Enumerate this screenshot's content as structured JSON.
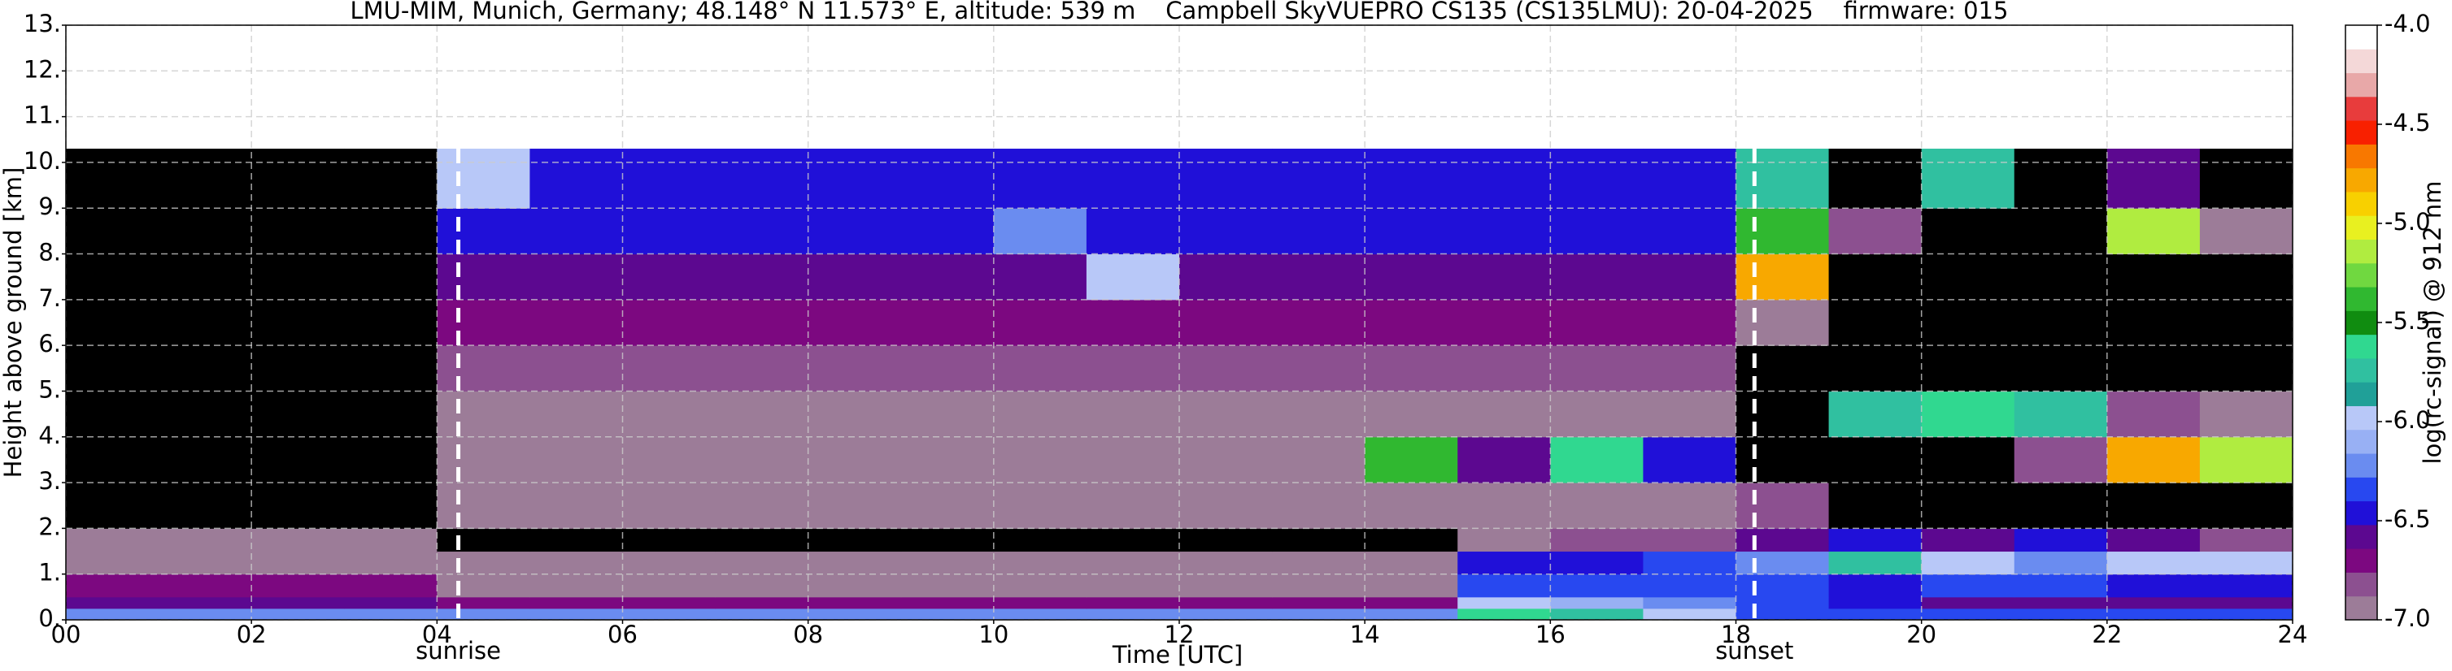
{
  "chart_data": {
    "type": "heatmap",
    "title": "LMU-MIM, Munich, Germany; 48.148° N 11.573° E, altitude: 539 m    Campbell SkyVUEPRO CS135 (CS135LMU): 20-04-2025    firmware: 015",
    "x_label": "Time [UTC]",
    "y_label": "Height above ground [km]",
    "x": [
      0,
      1,
      2,
      3,
      4,
      5,
      6,
      7,
      8,
      9,
      10,
      11,
      12,
      13,
      14,
      15,
      16,
      17,
      18,
      19,
      20,
      21,
      22,
      23,
      24
    ],
    "y": [
      0,
      0.25,
      0.5,
      1,
      1.5,
      2,
      3,
      4,
      5,
      6,
      7,
      8,
      9,
      10.3
    ],
    "z": [
      [
        -6.2,
        -6.2,
        -6.2,
        -6.2,
        -6.2,
        -6.2,
        -6.2,
        -6.2,
        -6.2,
        -6.2,
        -6.2,
        -6.2,
        -6.2,
        -6.2,
        -6.2,
        -5.6,
        -5.8,
        -6.0,
        -6.3,
        -6.3,
        -6.3,
        -6.3,
        -6.3,
        -6.3
      ],
      [
        -6.6,
        -6.6,
        -6.6,
        -6.6,
        -6.7,
        -6.7,
        -6.7,
        -6.7,
        -6.7,
        -6.7,
        -6.7,
        -6.7,
        -6.7,
        -6.7,
        -6.7,
        -6.0,
        -6.1,
        -6.2,
        -6.3,
        -6.5,
        -6.6,
        -6.6,
        -6.6,
        -6.6
      ],
      [
        -6.7,
        -6.7,
        -6.7,
        -6.7,
        -6.9,
        -6.9,
        -6.9,
        -6.9,
        -6.9,
        -6.9,
        -6.9,
        -6.9,
        -6.9,
        -6.9,
        -6.9,
        -6.3,
        -6.3,
        -6.3,
        -6.3,
        -6.4,
        -6.3,
        -6.3,
        -6.4,
        -6.5
      ],
      [
        -6.9,
        -6.9,
        -6.9,
        -6.9,
        -7.0,
        -7.0,
        -7.0,
        -7.0,
        -7.0,
        -7.0,
        -7.0,
        -7.0,
        -7.0,
        -7.0,
        -7.0,
        -6.4,
        -6.4,
        -6.3,
        -6.2,
        -5.8,
        -6.0,
        -6.2,
        -6.0,
        -6.0
      ],
      [
        -7.0,
        -7.0,
        -7.0,
        -7.0,
        -7.1,
        -7.1,
        -7.1,
        -7.1,
        -7.1,
        -7.1,
        -7.1,
        -7.1,
        -7.1,
        -7.1,
        -7.1,
        -6.9,
        -6.8,
        -6.8,
        -6.6,
        -6.5,
        -6.6,
        -6.5,
        -6.6,
        -6.8
      ],
      [
        -7.3,
        -7.3,
        -7.3,
        -7.3,
        -6.9,
        -6.9,
        -6.9,
        -6.9,
        -6.9,
        -6.9,
        -6.9,
        -6.9,
        -6.9,
        -6.9,
        -6.9,
        -6.9,
        -6.9,
        -6.9,
        -6.8,
        -7.3,
        -7.3,
        -7.3,
        -7.3,
        -7.3
      ],
      [
        -7.3,
        -7.3,
        -7.3,
        -7.3,
        -6.9,
        -6.9,
        -6.9,
        -6.9,
        -6.9,
        -6.9,
        -6.9,
        -6.9,
        -6.9,
        -6.9,
        -5.4,
        -6.6,
        -5.6,
        -6.4,
        -7.3,
        -7.3,
        -7.3,
        -6.8,
        -4.8,
        -5.2
      ],
      [
        -7.3,
        -7.3,
        -7.3,
        -7.3,
        -6.9,
        -6.9,
        -6.9,
        -6.9,
        -6.9,
        -6.9,
        -6.9,
        -6.9,
        -6.9,
        -6.9,
        -6.9,
        -6.9,
        -6.9,
        -6.9,
        -7.3,
        -5.8,
        -5.6,
        -5.8,
        -6.8,
        -7.0
      ],
      [
        -7.3,
        -7.3,
        -7.3,
        -7.3,
        -6.8,
        -6.8,
        -6.8,
        -6.8,
        -6.8,
        -6.8,
        -6.8,
        -6.8,
        -6.8,
        -6.8,
        -6.8,
        -6.8,
        -6.8,
        -6.8,
        -7.3,
        -7.3,
        -7.3,
        -7.3,
        -7.3,
        -7.3
      ],
      [
        -7.3,
        -7.3,
        -7.3,
        -7.3,
        -6.7,
        -6.7,
        -6.7,
        -6.7,
        -6.7,
        -6.7,
        -6.7,
        -6.7,
        -6.7,
        -6.7,
        -6.7,
        -6.7,
        -6.7,
        -6.7,
        -7.0,
        -7.3,
        -7.3,
        -7.3,
        -7.3,
        -7.3
      ],
      [
        -7.3,
        -7.3,
        -7.3,
        -7.3,
        -6.6,
        -6.6,
        -6.6,
        -6.6,
        -6.6,
        -6.6,
        -6.6,
        -6.0,
        -6.6,
        -6.6,
        -6.6,
        -6.6,
        -6.6,
        -6.6,
        -4.8,
        -7.3,
        -7.3,
        -7.3,
        -7.3,
        -7.3
      ],
      [
        -7.3,
        -7.3,
        -7.3,
        -7.3,
        -6.5,
        -6.5,
        -6.5,
        -6.5,
        -6.5,
        -6.5,
        -6.2,
        -6.5,
        -6.5,
        -6.5,
        -6.5,
        -6.5,
        -6.5,
        -6.5,
        -5.4,
        -6.8,
        -7.3,
        -7.3,
        -5.2,
        -7.0
      ],
      [
        -7.2,
        -7.2,
        -7.2,
        -7.2,
        -6.0,
        -6.5,
        -6.5,
        -6.5,
        -6.5,
        -6.5,
        -6.5,
        -6.5,
        -6.5,
        -6.5,
        -6.5,
        -6.5,
        -6.5,
        -6.5,
        -5.8,
        -7.2,
        -5.8,
        -7.3,
        -6.6,
        -7.3
      ]
    ],
    "xlim": [
      0,
      24
    ],
    "ylim": [
      0,
      13
    ],
    "xticks": [
      {
        "value": 0,
        "label": "00"
      },
      {
        "value": 2,
        "label": "02"
      },
      {
        "value": 4,
        "label": "04"
      },
      {
        "value": 6,
        "label": "06"
      },
      {
        "value": 8,
        "label": "08"
      },
      {
        "value": 10,
        "label": "10"
      },
      {
        "value": 12,
        "label": "12"
      },
      {
        "value": 14,
        "label": "14"
      },
      {
        "value": 16,
        "label": "16"
      },
      {
        "value": 18,
        "label": "18"
      },
      {
        "value": 20,
        "label": "20"
      },
      {
        "value": 22,
        "label": "22"
      },
      {
        "value": 24,
        "label": "24"
      }
    ],
    "yticks": [
      {
        "value": 0,
        "label": "0."
      },
      {
        "value": 1,
        "label": "1."
      },
      {
        "value": 2,
        "label": "2."
      },
      {
        "value": 3,
        "label": "3."
      },
      {
        "value": 4,
        "label": "4."
      },
      {
        "value": 5,
        "label": "5."
      },
      {
        "value": 6,
        "label": "6."
      },
      {
        "value": 7,
        "label": "7."
      },
      {
        "value": 8,
        "label": "8."
      },
      {
        "value": 9,
        "label": "9."
      },
      {
        "value": 10,
        "label": "10."
      },
      {
        "value": 11,
        "label": "11."
      },
      {
        "value": 12,
        "label": "12."
      },
      {
        "value": 13,
        "label": "13."
      }
    ],
    "grid": true,
    "annotations": [
      {
        "x": 4.23,
        "label": "sunrise"
      },
      {
        "x": 18.2,
        "label": "sunset"
      }
    ],
    "colorbar": {
      "label": "log(rc-signal) @ 912 nm",
      "lim": [
        -7,
        -4
      ],
      "under_color": "#000000",
      "colors": [
        "#9c7c98",
        "#8c5090",
        "#7c0880",
        "#5c0890",
        "#2010d8",
        "#2848f0",
        "#6a8cf0",
        "#98b0f4",
        "#b8c8f8",
        "#20a098",
        "#30c0a0",
        "#30d890",
        "#108c10",
        "#30b830",
        "#70d840",
        "#b0ec40",
        "#e8f020",
        "#f8d000",
        "#f8a800",
        "#f87800",
        "#f82000",
        "#e83c3c",
        "#e8a8a8",
        "#f4d8d8",
        "#ffffff"
      ],
      "ticks": [
        {
          "value": -7,
          "label": "-7.0"
        },
        {
          "value": -6.5,
          "label": "-6.5"
        },
        {
          "value": -6,
          "label": "-6.0"
        },
        {
          "value": -5.5,
          "label": "-5.5"
        },
        {
          "value": -5,
          "label": "-5.0"
        },
        {
          "value": -4.5,
          "label": "-4.5"
        },
        {
          "value": -4,
          "label": "-4.0"
        }
      ]
    }
  }
}
